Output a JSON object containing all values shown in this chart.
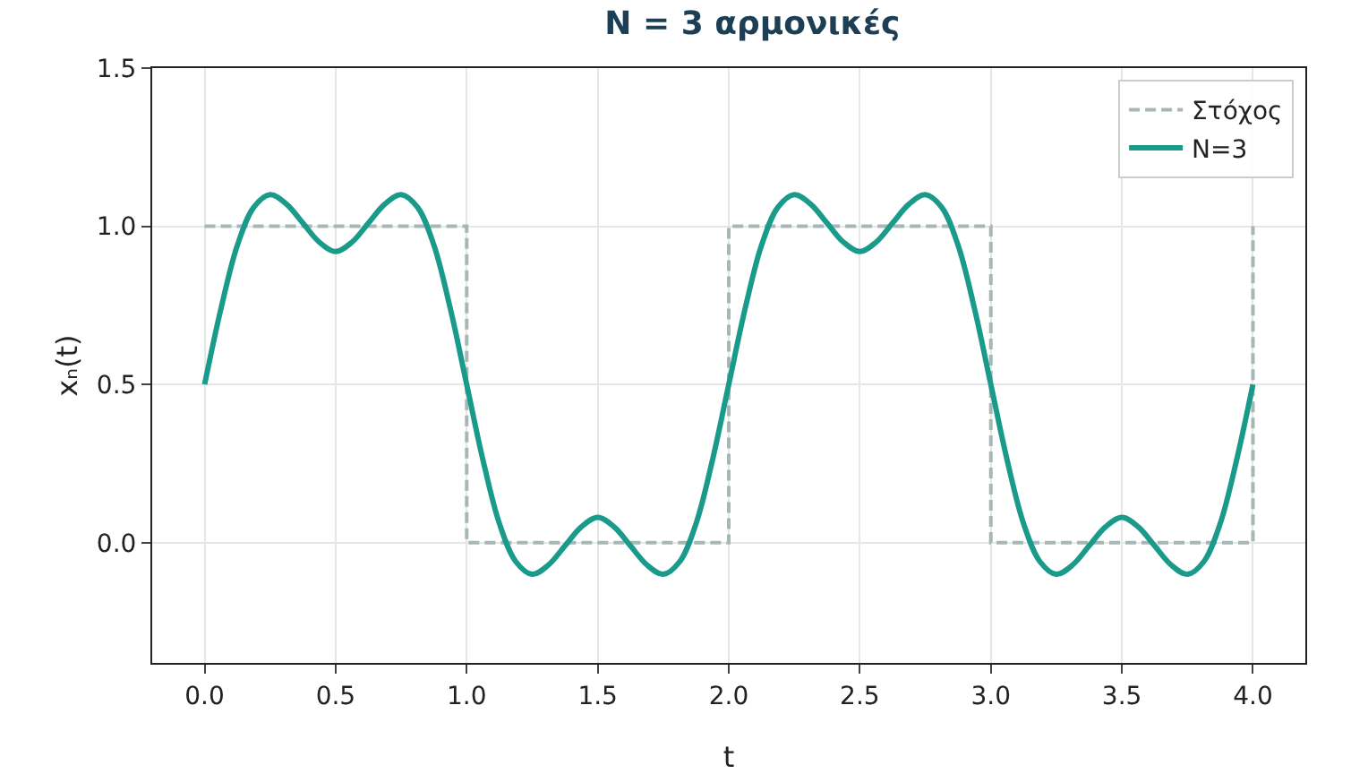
{
  "chart_data": {
    "type": "line",
    "title": "N = 3 αρμονικές",
    "xlabel": "t",
    "ylabel": "xₙ(t)",
    "xlim": [
      -0.2,
      4.2
    ],
    "xticks": [
      {
        "value": 0,
        "label": "0.0"
      },
      {
        "value": 0.5,
        "label": "0.5"
      },
      {
        "value": 1,
        "label": "1.0"
      },
      {
        "value": 1.5,
        "label": "1.5"
      },
      {
        "value": 2,
        "label": "2.0"
      },
      {
        "value": 2.5,
        "label": "2.5"
      },
      {
        "value": 3,
        "label": "3.0"
      },
      {
        "value": 3.5,
        "label": "3.5"
      },
      {
        "value": 4,
        "label": "4.0"
      }
    ],
    "ylim": [
      -0.38,
      1.5
    ],
    "yticks": [
      {
        "value": 0,
        "label": "0.0"
      },
      {
        "value": 0.5,
        "label": "0.5"
      },
      {
        "value": 1,
        "label": "1.0"
      },
      {
        "value": 1.5,
        "label": "1.5"
      }
    ],
    "grid": true,
    "legend": "top right",
    "marker": "none",
    "series": [
      {
        "name": "Στόχος",
        "type": "step",
        "line_style": "dashed",
        "color": "#a7b7b5",
        "x": [
          0,
          1,
          2,
          3,
          4
        ],
        "values": [
          1,
          0,
          1,
          0,
          1
        ]
      },
      {
        "name": "N=3",
        "line_style": "solid",
        "color": "#1a9a8a",
        "x": [
          0,
          0.0625,
          0.125,
          0.1875,
          0.25,
          0.3125,
          0.375,
          0.4375,
          0.5,
          0.5625,
          0.625,
          0.6875,
          0.75,
          0.8125,
          0.875,
          0.9375,
          1,
          1.0625,
          1.125,
          1.1875,
          1.25,
          1.3125,
          1.375,
          1.4375,
          1.5,
          1.5625,
          1.625,
          1.6875,
          1.75,
          1.8125,
          1.875,
          1.9375,
          2,
          2.0625,
          2.125,
          2.1875,
          2.25,
          2.3125,
          2.375,
          2.4375,
          2.5,
          2.5625,
          2.625,
          2.6875,
          2.75,
          2.8125,
          2.875,
          2.9375,
          3,
          3.0625,
          3.125,
          3.1875,
          3.25,
          3.3125,
          3.375,
          3.4375,
          3.5,
          3.5625,
          3.625,
          3.6875,
          3.75,
          3.8125,
          3.875,
          3.9375,
          4
        ],
        "values": [
          0.5,
          0.74,
          0.94,
          1.06,
          1.1,
          1.07,
          1.01,
          0.95,
          0.92,
          0.95,
          1.01,
          1.07,
          1.1,
          1.06,
          0.94,
          0.74,
          0.5,
          0.26,
          0.06,
          -0.06,
          -0.1,
          -0.07,
          -0.01,
          0.05,
          0.08,
          0.05,
          -0.01,
          -0.07,
          -0.1,
          -0.06,
          0.06,
          0.26,
          0.5,
          0.74,
          0.94,
          1.06,
          1.1,
          1.07,
          1.01,
          0.95,
          0.92,
          0.95,
          1.01,
          1.07,
          1.1,
          1.06,
          0.94,
          0.74,
          0.5,
          0.26,
          0.06,
          -0.06,
          -0.1,
          -0.07,
          -0.01,
          0.05,
          0.08,
          0.05,
          -0.01,
          -0.07,
          -0.1,
          -0.06,
          0.06,
          0.26,
          0.5
        ]
      }
    ]
  }
}
